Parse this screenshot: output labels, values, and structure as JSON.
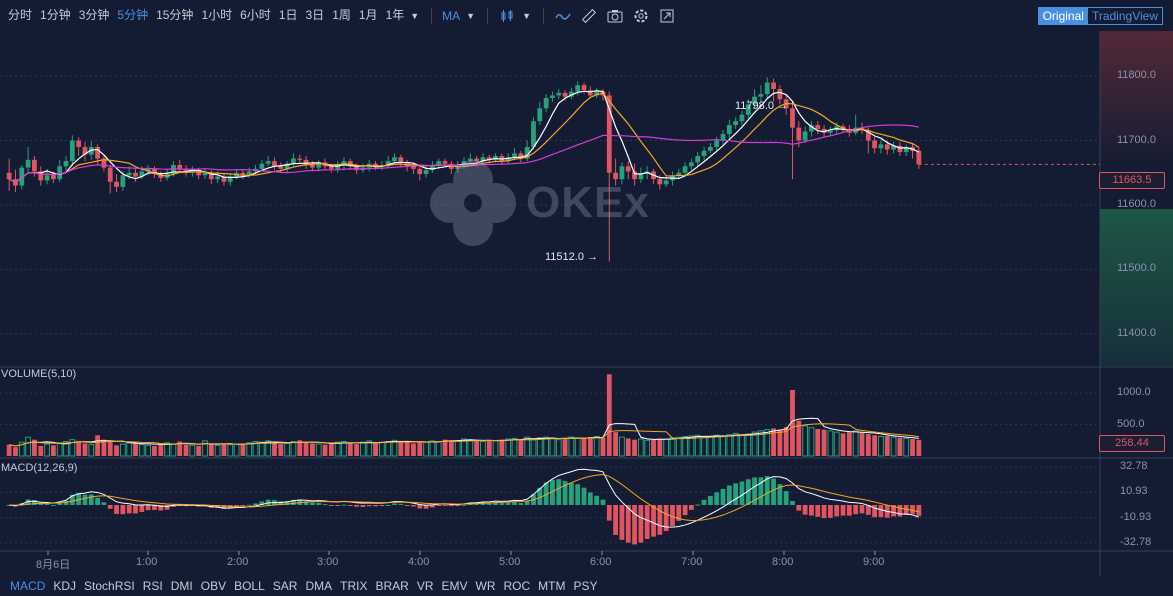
{
  "toolbar": {
    "intervals": [
      "分时",
      "1分钟",
      "3分钟",
      "5分钟",
      "15分钟",
      "1小时",
      "6小时",
      "1日",
      "3日",
      "1周",
      "1月",
      "1年"
    ],
    "active_interval": "5分钟",
    "indicator_label": "MA",
    "view_original": "Original",
    "view_tradingview": "TradingView",
    "icons": [
      "candle-type-icon",
      "line-draw-icon",
      "ruler-icon",
      "camera-icon",
      "gear-icon",
      "fullscreen-icon"
    ]
  },
  "watermark": {
    "text": "OKEx"
  },
  "price_panel": {
    "y_ticks": [
      "11800.0",
      "11700.0",
      "11600.0",
      "11500.0",
      "11400.0"
    ],
    "current_price": "11663.5",
    "high_annotation": "11798.0 →",
    "low_annotation": "11512.0 →",
    "colors": {
      "up": "#26a17b",
      "down": "#e05560",
      "ma_fast": "#ffffff",
      "ma_mid": "#f5a623",
      "ma_slow": "#d63bd6"
    }
  },
  "volume_panel": {
    "label": "VOLUME(5,10)",
    "y_ticks": [
      "1000.0",
      "500.0"
    ],
    "current_volume": "258.44"
  },
  "macd_panel": {
    "label": "MACD(12,26,9)",
    "y_ticks": [
      "32.78",
      "10.93",
      "-10.93",
      "-32.78"
    ]
  },
  "x_axis": {
    "labels": [
      "8月6日",
      "1:00",
      "2:00",
      "3:00",
      "4:00",
      "5:00",
      "6:00",
      "7:00",
      "8:00",
      "9:00"
    ]
  },
  "chart_data": {
    "type": "candlestick",
    "interval": "5分钟",
    "x_labels": [
      "8月6日",
      "1:00",
      "2:00",
      "3:00",
      "4:00",
      "5:00",
      "6:00",
      "7:00",
      "8:00",
      "9:00"
    ],
    "price_ylim": [
      11350,
      11870
    ],
    "candles": [
      [
        11650,
        11640,
        11672,
        11622
      ],
      [
        11640,
        11630,
        11655,
        11620
      ],
      [
        11630,
        11658,
        11662,
        11624
      ],
      [
        11658,
        11670,
        11690,
        11650
      ],
      [
        11670,
        11652,
        11676,
        11644
      ],
      [
        11652,
        11638,
        11660,
        11630
      ],
      [
        11638,
        11646,
        11656,
        11632
      ],
      [
        11646,
        11640,
        11652,
        11634
      ],
      [
        11640,
        11660,
        11670,
        11636
      ],
      [
        11660,
        11668,
        11676,
        11652
      ],
      [
        11668,
        11700,
        11708,
        11660
      ],
      [
        11700,
        11690,
        11705,
        11676
      ],
      [
        11690,
        11678,
        11698,
        11668
      ],
      [
        11678,
        11690,
        11699,
        11670
      ],
      [
        11690,
        11672,
        11694,
        11662
      ],
      [
        11672,
        11658,
        11678,
        11652
      ],
      [
        11658,
        11636,
        11662,
        11618
      ],
      [
        11636,
        11628,
        11648,
        11620
      ],
      [
        11628,
        11646,
        11652,
        11622
      ],
      [
        11646,
        11650,
        11660,
        11640
      ],
      [
        11650,
        11644,
        11656,
        11636
      ],
      [
        11644,
        11652,
        11660,
        11640
      ],
      [
        11652,
        11656,
        11662,
        11646
      ],
      [
        11656,
        11648,
        11660,
        11642
      ],
      [
        11648,
        11642,
        11652,
        11636
      ],
      [
        11642,
        11648,
        11656,
        11638
      ],
      [
        11648,
        11662,
        11668,
        11644
      ],
      [
        11662,
        11656,
        11670,
        11650
      ],
      [
        11656,
        11650,
        11662,
        11644
      ],
      [
        11650,
        11654,
        11660,
        11644
      ],
      [
        11654,
        11646,
        11658,
        11640
      ],
      [
        11646,
        11650,
        11656,
        11640
      ],
      [
        11650,
        11640,
        11654,
        11632
      ],
      [
        11640,
        11644,
        11652,
        11634
      ],
      [
        11644,
        11636,
        11650,
        11630
      ],
      [
        11636,
        11644,
        11648,
        11630
      ],
      [
        11644,
        11650,
        11656,
        11640
      ],
      [
        11650,
        11646,
        11654,
        11640
      ],
      [
        11646,
        11652,
        11658,
        11642
      ],
      [
        11652,
        11656,
        11662,
        11648
      ],
      [
        11656,
        11664,
        11670,
        11652
      ],
      [
        11664,
        11668,
        11676,
        11660
      ],
      [
        11668,
        11660,
        11674,
        11654
      ],
      [
        11660,
        11656,
        11666,
        11650
      ],
      [
        11656,
        11664,
        11668,
        11650
      ],
      [
        11664,
        11672,
        11680,
        11660
      ],
      [
        11672,
        11670,
        11678,
        11664
      ],
      [
        11670,
        11662,
        11676,
        11656
      ],
      [
        11662,
        11658,
        11668,
        11652
      ],
      [
        11658,
        11666,
        11670,
        11652
      ],
      [
        11666,
        11660,
        11672,
        11654
      ],
      [
        11660,
        11656,
        11664,
        11650
      ],
      [
        11656,
        11662,
        11668,
        11650
      ],
      [
        11662,
        11668,
        11674,
        11656
      ],
      [
        11668,
        11660,
        11672,
        11654
      ],
      [
        11660,
        11654,
        11664,
        11648
      ],
      [
        11654,
        11658,
        11664,
        11650
      ],
      [
        11658,
        11664,
        11670,
        11652
      ],
      [
        11664,
        11660,
        11668,
        11654
      ],
      [
        11660,
        11662,
        11668,
        11654
      ],
      [
        11662,
        11668,
        11676,
        11658
      ],
      [
        11668,
        11674,
        11680,
        11664
      ],
      [
        11674,
        11666,
        11678,
        11658
      ],
      [
        11666,
        11660,
        11670,
        11652
      ],
      [
        11660,
        11656,
        11664,
        11648
      ],
      [
        11656,
        11648,
        11660,
        11638
      ],
      [
        11648,
        11654,
        11660,
        11642
      ],
      [
        11654,
        11662,
        11668,
        11650
      ],
      [
        11662,
        11668,
        11672,
        11656
      ],
      [
        11668,
        11664,
        11672,
        11660
      ],
      [
        11664,
        11656,
        11668,
        11648
      ],
      [
        11656,
        11660,
        11668,
        11650
      ],
      [
        11660,
        11668,
        11674,
        11656
      ],
      [
        11668,
        11672,
        11680,
        11664
      ],
      [
        11672,
        11668,
        11676,
        11660
      ],
      [
        11668,
        11674,
        11680,
        11664
      ],
      [
        11674,
        11670,
        11678,
        11664
      ],
      [
        11670,
        11676,
        11680,
        11666
      ],
      [
        11676,
        11668,
        11680,
        11662
      ],
      [
        11668,
        11674,
        11680,
        11664
      ],
      [
        11674,
        11680,
        11688,
        11670
      ],
      [
        11680,
        11672,
        11684,
        11666
      ],
      [
        11672,
        11690,
        11700,
        11668
      ],
      [
        11690,
        11730,
        11736,
        11686
      ],
      [
        11730,
        11750,
        11760,
        11724
      ],
      [
        11750,
        11766,
        11772,
        11744
      ],
      [
        11766,
        11770,
        11776,
        11760
      ],
      [
        11770,
        11774,
        11780,
        11764
      ],
      [
        11774,
        11768,
        11778,
        11762
      ],
      [
        11768,
        11776,
        11782,
        11764
      ],
      [
        11776,
        11786,
        11792,
        11770
      ],
      [
        11786,
        11778,
        11790,
        11772
      ],
      [
        11778,
        11770,
        11784,
        11766
      ],
      [
        11770,
        11776,
        11782,
        11766
      ],
      [
        11776,
        11770,
        11780,
        11762
      ],
      [
        11770,
        11650,
        11776,
        11512
      ],
      [
        11650,
        11640,
        11672,
        11630
      ],
      [
        11640,
        11660,
        11666,
        11632
      ],
      [
        11660,
        11652,
        11668,
        11640
      ],
      [
        11652,
        11640,
        11664,
        11630
      ],
      [
        11640,
        11648,
        11658,
        11634
      ],
      [
        11648,
        11652,
        11660,
        11640
      ],
      [
        11652,
        11640,
        11656,
        11632
      ],
      [
        11640,
        11632,
        11646,
        11624
      ],
      [
        11632,
        11638,
        11644,
        11628
      ],
      [
        11638,
        11646,
        11652,
        11630
      ],
      [
        11646,
        11650,
        11656,
        11640
      ],
      [
        11650,
        11660,
        11666,
        11644
      ],
      [
        11660,
        11666,
        11672,
        11654
      ],
      [
        11666,
        11676,
        11682,
        11660
      ],
      [
        11676,
        11684,
        11690,
        11670
      ],
      [
        11684,
        11690,
        11696,
        11680
      ],
      [
        11690,
        11700,
        11706,
        11684
      ],
      [
        11700,
        11710,
        11716,
        11694
      ],
      [
        11710,
        11724,
        11732,
        11704
      ],
      [
        11724,
        11730,
        11736,
        11718
      ],
      [
        11730,
        11740,
        11746,
        11724
      ],
      [
        11740,
        11756,
        11764,
        11734
      ],
      [
        11756,
        11768,
        11780,
        11750
      ],
      [
        11768,
        11772,
        11786,
        11760
      ],
      [
        11772,
        11790,
        11798,
        11766
      ],
      [
        11790,
        11780,
        11796,
        11760
      ],
      [
        11780,
        11764,
        11786,
        11756
      ],
      [
        11764,
        11750,
        11770,
        11740
      ],
      [
        11750,
        11720,
        11760,
        11640
      ],
      [
        11720,
        11700,
        11730,
        11690
      ],
      [
        11700,
        11714,
        11722,
        11696
      ],
      [
        11714,
        11724,
        11730,
        11706
      ],
      [
        11724,
        11718,
        11730,
        11710
      ],
      [
        11718,
        11712,
        11724,
        11706
      ],
      [
        11712,
        11716,
        11722,
        11708
      ],
      [
        11716,
        11722,
        11728,
        11710
      ],
      [
        11722,
        11718,
        11726,
        11712
      ],
      [
        11718,
        11712,
        11724,
        11706
      ],
      [
        11712,
        11720,
        11740,
        11708
      ],
      [
        11720,
        11716,
        11728,
        11710
      ],
      [
        11716,
        11700,
        11720,
        11680
      ],
      [
        11700,
        11688,
        11706,
        11680
      ],
      [
        11688,
        11694,
        11700,
        11680
      ],
      [
        11694,
        11686,
        11700,
        11678
      ],
      [
        11686,
        11692,
        11698,
        11680
      ],
      [
        11692,
        11682,
        11698,
        11676
      ],
      [
        11682,
        11690,
        11694,
        11676
      ],
      [
        11690,
        11684,
        11696,
        11672
      ],
      [
        11684,
        11663,
        11690,
        11656
      ]
    ],
    "volumes": [
      180,
      140,
      220,
      300,
      260,
      160,
      190,
      170,
      210,
      230,
      260,
      240,
      200,
      180,
      330,
      260,
      230,
      170,
      190,
      210,
      220,
      180,
      170,
      160,
      200,
      210,
      190,
      230,
      180,
      170,
      160,
      240,
      200,
      170,
      190,
      180,
      190,
      200,
      210,
      230,
      220,
      240,
      210,
      190,
      200,
      230,
      250,
      220,
      200,
      190,
      180,
      210,
      220,
      230,
      200,
      190,
      220,
      240,
      210,
      220,
      230,
      250,
      240,
      220,
      200,
      230,
      220,
      240,
      230,
      260,
      250,
      240,
      270,
      260,
      240,
      230,
      250,
      240,
      260,
      270,
      280,
      260,
      300,
      260,
      290,
      300,
      280,
      260,
      280,
      300,
      290,
      280,
      300,
      310,
      290,
      1300,
      380,
      300,
      280,
      260,
      270,
      250,
      260,
      280,
      270,
      290,
      300,
      310,
      320,
      330,
      300,
      310,
      330,
      320,
      340,
      360,
      330,
      350,
      380,
      400,
      420,
      440,
      420,
      460,
      1050,
      560,
      480,
      450,
      430,
      420,
      400,
      380,
      360,
      380,
      400,
      370,
      350,
      330,
      310,
      320,
      300,
      290,
      280,
      270,
      258
    ],
    "macd_ylim": [
      -40,
      40
    ]
  }
}
